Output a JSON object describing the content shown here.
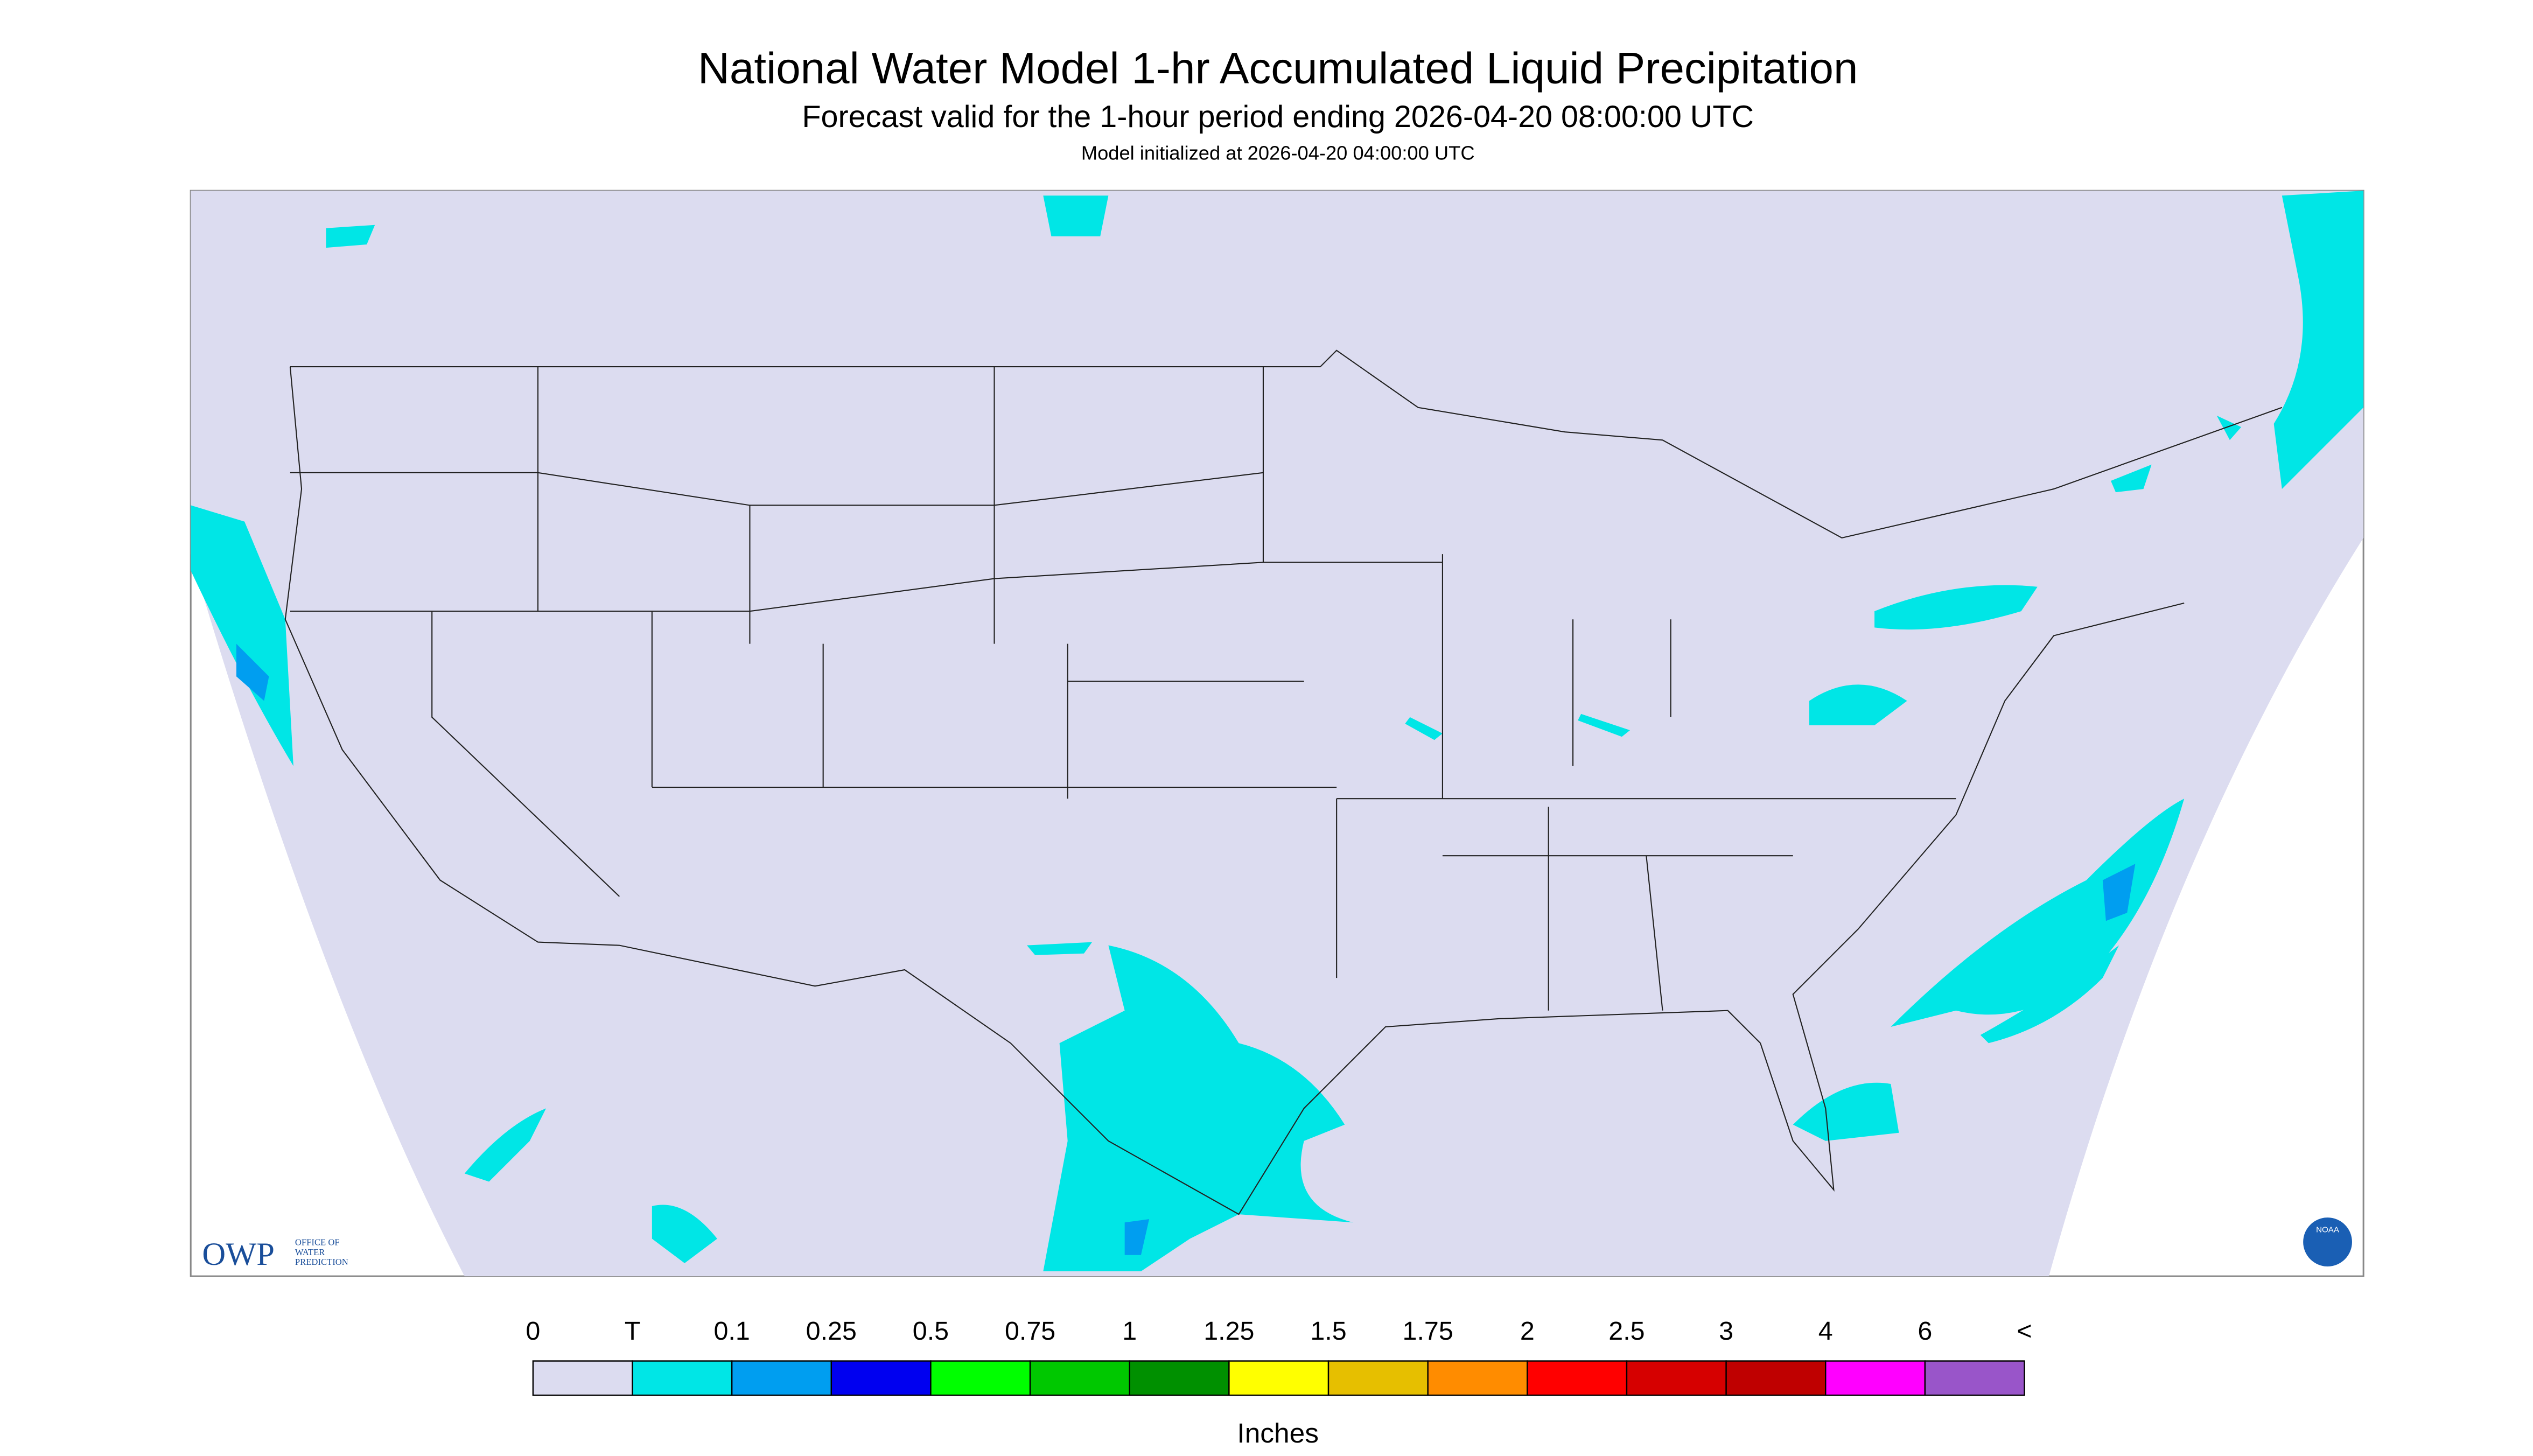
{
  "title": "National Water Model 1-hr Accumulated Liquid Precipitation",
  "subtitle": "Forecast valid for the 1-hour period ending 2026-04-20 08:00:00 UTC",
  "init": "Model initialized at 2026-04-20 04:00:00 UTC",
  "legend": {
    "labels": [
      "0",
      "T",
      "0.1",
      "0.25",
      "0.5",
      "0.75",
      "1",
      "1.25",
      "1.5",
      "1.75",
      "2",
      "2.5",
      "3",
      "4",
      "6",
      "<"
    ],
    "colors": [
      "#dcdcf0",
      "#00e6e6",
      "#009ef0",
      "#0000f0",
      "#00ff00",
      "#00c800",
      "#009000",
      "#ffff00",
      "#e6bf00",
      "#ff8c00",
      "#ff0000",
      "#d60000",
      "#bf0000",
      "#ff00ff",
      "#9955c9"
    ],
    "unit": "Inches"
  },
  "logo": {
    "owp": "OWP",
    "office": [
      "OFFICE OF",
      "WATER",
      "PREDICTION"
    ]
  },
  "noaa": "NOAA"
}
